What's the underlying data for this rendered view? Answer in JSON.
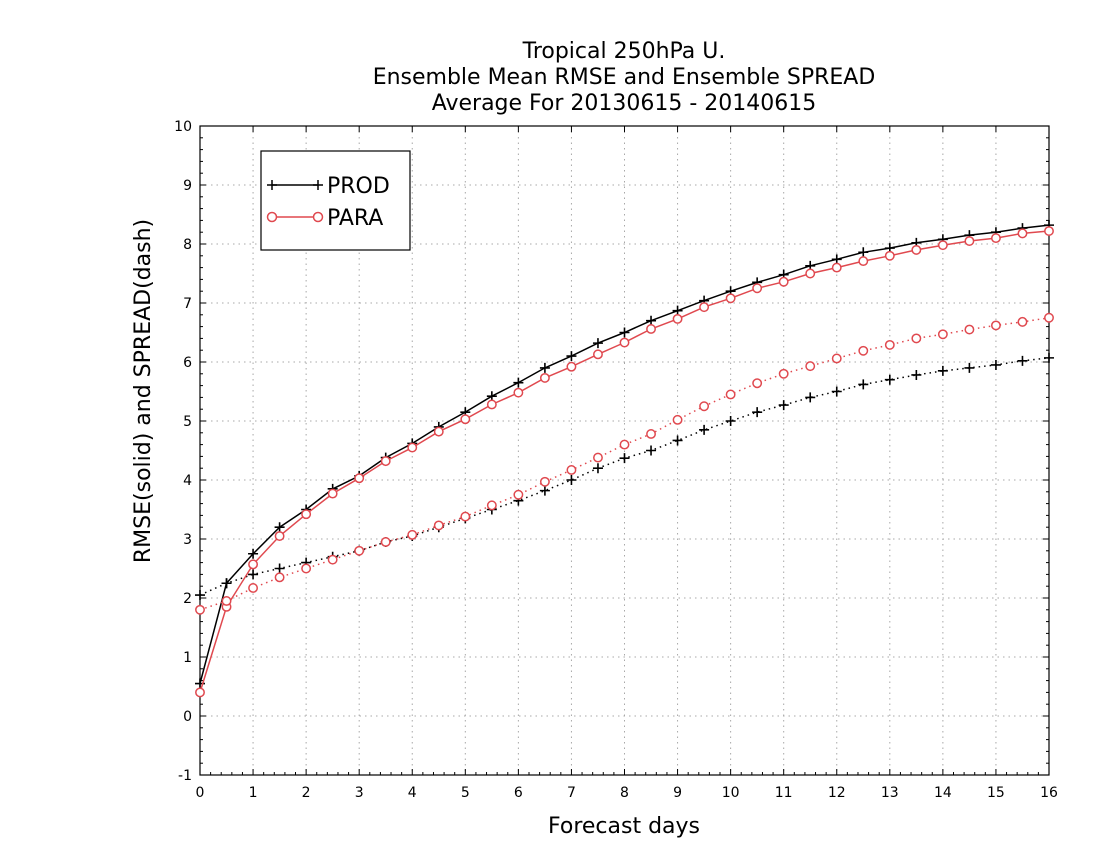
{
  "chart_data": {
    "type": "line",
    "title": [
      "Tropical 250hPa U.",
      "Ensemble Mean RMSE and Ensemble SPREAD",
      "Average For 20130615 - 20140615"
    ],
    "xlabel": "Forecast days",
    "ylabel": "RMSE(solid) and SPREAD(dash)",
    "xlim": [
      0,
      16
    ],
    "ylim": [
      -1,
      10
    ],
    "xticks": [
      "0",
      "1",
      "2",
      "3",
      "4",
      "5",
      "6",
      "7",
      "8",
      "9",
      "10",
      "11",
      "12",
      "13",
      "14",
      "15",
      "16"
    ],
    "yticks": [
      "-1",
      "0",
      "1",
      "2",
      "3",
      "4",
      "5",
      "6",
      "7",
      "8",
      "9",
      "10"
    ],
    "grid": true,
    "legend_position": "top-left",
    "x": [
      0,
      0.5,
      1,
      1.5,
      2,
      2.5,
      3,
      3.5,
      4,
      4.5,
      5,
      5.5,
      6,
      6.5,
      7,
      7.5,
      8,
      8.5,
      9,
      9.5,
      10,
      10.5,
      11,
      11.5,
      12,
      12.5,
      13,
      13.5,
      14,
      14.5,
      15,
      15.5,
      16
    ],
    "series": [
      {
        "name": "PROD",
        "color": "#000000",
        "marker": "plus",
        "rmse": [
          0.55,
          2.25,
          2.75,
          3.2,
          3.5,
          3.85,
          4.07,
          4.38,
          4.62,
          4.9,
          5.15,
          5.42,
          5.65,
          5.9,
          6.1,
          6.32,
          6.5,
          6.7,
          6.87,
          7.04,
          7.2,
          7.35,
          7.48,
          7.63,
          7.74,
          7.86,
          7.93,
          8.02,
          8.08,
          8.15,
          8.2,
          8.27,
          8.32
        ],
        "spread": [
          2.05,
          2.25,
          2.4,
          2.5,
          2.6,
          2.7,
          2.8,
          2.95,
          3.05,
          3.2,
          3.35,
          3.5,
          3.65,
          3.82,
          4.0,
          4.2,
          4.37,
          4.5,
          4.67,
          4.85,
          5.0,
          5.15,
          5.27,
          5.4,
          5.5,
          5.62,
          5.7,
          5.78,
          5.85,
          5.9,
          5.95,
          6.02,
          6.07
        ]
      },
      {
        "name": "PARA",
        "color": "#e0494f",
        "marker": "circle",
        "rmse": [
          0.4,
          1.85,
          2.57,
          3.05,
          3.42,
          3.77,
          4.03,
          4.32,
          4.55,
          4.82,
          5.03,
          5.28,
          5.48,
          5.73,
          5.92,
          6.13,
          6.33,
          6.56,
          6.73,
          6.93,
          7.08,
          7.25,
          7.36,
          7.5,
          7.6,
          7.71,
          7.8,
          7.9,
          7.98,
          8.05,
          8.1,
          8.18,
          8.22
        ],
        "spread": [
          1.8,
          1.95,
          2.17,
          2.35,
          2.5,
          2.65,
          2.8,
          2.95,
          3.07,
          3.23,
          3.38,
          3.57,
          3.75,
          3.97,
          4.17,
          4.38,
          4.6,
          4.78,
          5.02,
          5.25,
          5.45,
          5.64,
          5.8,
          5.93,
          6.06,
          6.19,
          6.29,
          6.4,
          6.47,
          6.55,
          6.62,
          6.68,
          6.75
        ]
      }
    ]
  }
}
